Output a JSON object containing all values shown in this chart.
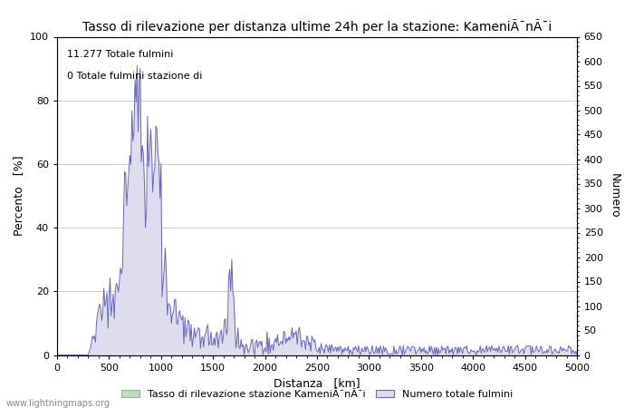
{
  "title": "Tasso di rilevazione per distanza ultime 24h per la stazione: KameniÃ¯nÃ¯i",
  "xlabel": "Distanza   [km]",
  "ylabel_left": "Percento   [%]",
  "ylabel_right": "Numero",
  "xlim": [
    0,
    5000
  ],
  "ylim_left": [
    0,
    100
  ],
  "ylim_right": [
    0,
    650
  ],
  "annotation1": "11.277 Totale fulmini",
  "annotation2": "0 Totale fulmini stazione di",
  "legend_label1": "Tasso di rilevazione stazione KameniÃ¯nÃ¯i",
  "legend_label2": "Numero totale fulmini",
  "watermark": "www.lightningmaps.org",
  "line_color": "#6666bb",
  "fill_color": "#ddddee",
  "green_fill_color": "#bbddbb",
  "green_line_color": "#99bb99",
  "background_color": "#ffffff",
  "grid_color": "#cccccc",
  "xticks": [
    0,
    500,
    1000,
    1500,
    2000,
    2500,
    3000,
    3500,
    4000,
    4500,
    5000
  ],
  "yticks_left": [
    0,
    20,
    40,
    60,
    80,
    100
  ],
  "yticks_right": [
    0,
    50,
    100,
    150,
    200,
    250,
    300,
    350,
    400,
    450,
    500,
    550,
    600,
    650
  ],
  "title_fontsize": 10,
  "axis_fontsize": 9,
  "tick_fontsize": 8,
  "annot_fontsize": 8
}
